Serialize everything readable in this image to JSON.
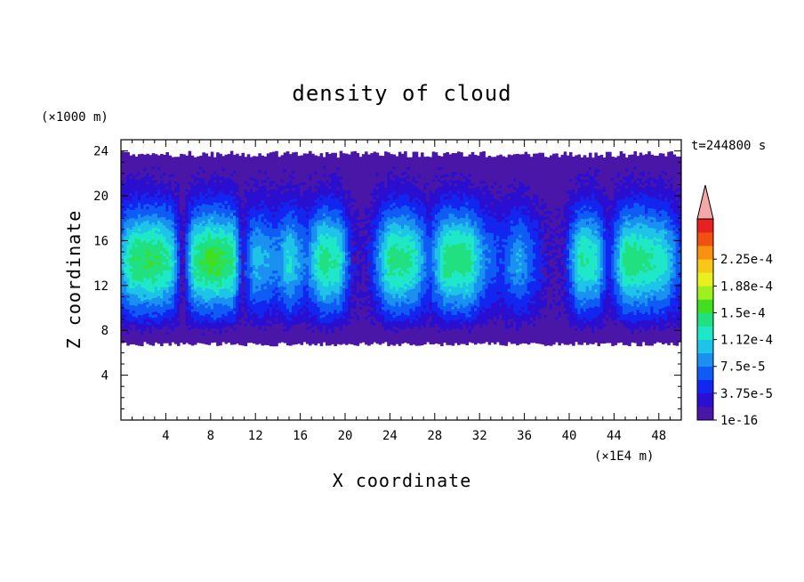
{
  "chart_data": {
    "type": "heatmap",
    "title": "density of cloud",
    "xlabel": "X coordinate",
    "ylabel": "Z coordinate",
    "x_unit": "(×1E4 m)",
    "y_unit": "(×1000 m)",
    "time_label": "t=244800 s",
    "xlim": [
      0,
      50
    ],
    "ylim": [
      0,
      25
    ],
    "x_ticks": [
      "4",
      "8",
      "12",
      "16",
      "20",
      "24",
      "28",
      "32",
      "36",
      "40",
      "44",
      "48"
    ],
    "y_ticks": [
      "4",
      "8",
      "12",
      "16",
      "20",
      "24"
    ],
    "colorbar": {
      "labels": [
        "1e-16",
        "3.75e-5",
        "7.5e-5",
        "1.12e-4",
        "1.5e-4",
        "1.88e-4",
        "2.25e-4"
      ],
      "levels": [
        1e-16,
        1.875e-05,
        3.75e-05,
        5.625e-05,
        7.5e-05,
        9.375e-05,
        0.000112,
        0.000131,
        0.00015,
        0.000169,
        0.000188,
        0.000206,
        0.000225,
        0.000244
      ],
      "colors": [
        "#4a16a8",
        "#2a0fd0",
        "#1226f0",
        "#0f5cf5",
        "#1a90f0",
        "#1ec4e8",
        "#1ee8c8",
        "#20e080",
        "#40e020",
        "#a0f020",
        "#e8f020",
        "#f8c818",
        "#f89010",
        "#f05010",
        "#e82020"
      ],
      "extend_color": "#f4a8a8"
    },
    "cloud_layer": {
      "base": 7,
      "top": 24
    },
    "column_intensity": [
      {
        "x": 0,
        "v": 0.55
      },
      {
        "x": 1,
        "v": 0.85
      },
      {
        "x": 3,
        "v": 0.9
      },
      {
        "x": 4.5,
        "v": 0.75
      },
      {
        "x": 5.5,
        "v": 0.1
      },
      {
        "x": 6.5,
        "v": 0.8
      },
      {
        "x": 8,
        "v": 0.95
      },
      {
        "x": 10,
        "v": 0.85
      },
      {
        "x": 10.8,
        "v": 0.2
      },
      {
        "x": 12,
        "v": 0.6
      },
      {
        "x": 14,
        "v": 0.45
      },
      {
        "x": 15,
        "v": 0.7
      },
      {
        "x": 16.5,
        "v": 0.4
      },
      {
        "x": 18,
        "v": 0.85
      },
      {
        "x": 19.5,
        "v": 0.75
      },
      {
        "x": 20.5,
        "v": 0.25
      },
      {
        "x": 21.5,
        "v": 0.1
      },
      {
        "x": 22.5,
        "v": 0.3
      },
      {
        "x": 24,
        "v": 0.85
      },
      {
        "x": 26,
        "v": 0.8
      },
      {
        "x": 27.5,
        "v": 0.35
      },
      {
        "x": 29,
        "v": 0.85
      },
      {
        "x": 31,
        "v": 0.85
      },
      {
        "x": 32.5,
        "v": 0.45
      },
      {
        "x": 34,
        "v": 0.3
      },
      {
        "x": 35.5,
        "v": 0.55
      },
      {
        "x": 37,
        "v": 0.3
      },
      {
        "x": 38.5,
        "v": 0.1
      },
      {
        "x": 39.5,
        "v": 0.15
      },
      {
        "x": 41,
        "v": 0.8
      },
      {
        "x": 42.5,
        "v": 0.7
      },
      {
        "x": 43.5,
        "v": 0.2
      },
      {
        "x": 45,
        "v": 0.85
      },
      {
        "x": 47,
        "v": 0.8
      },
      {
        "x": 48.5,
        "v": 0.7
      },
      {
        "x": 50,
        "v": 0.3
      }
    ]
  }
}
